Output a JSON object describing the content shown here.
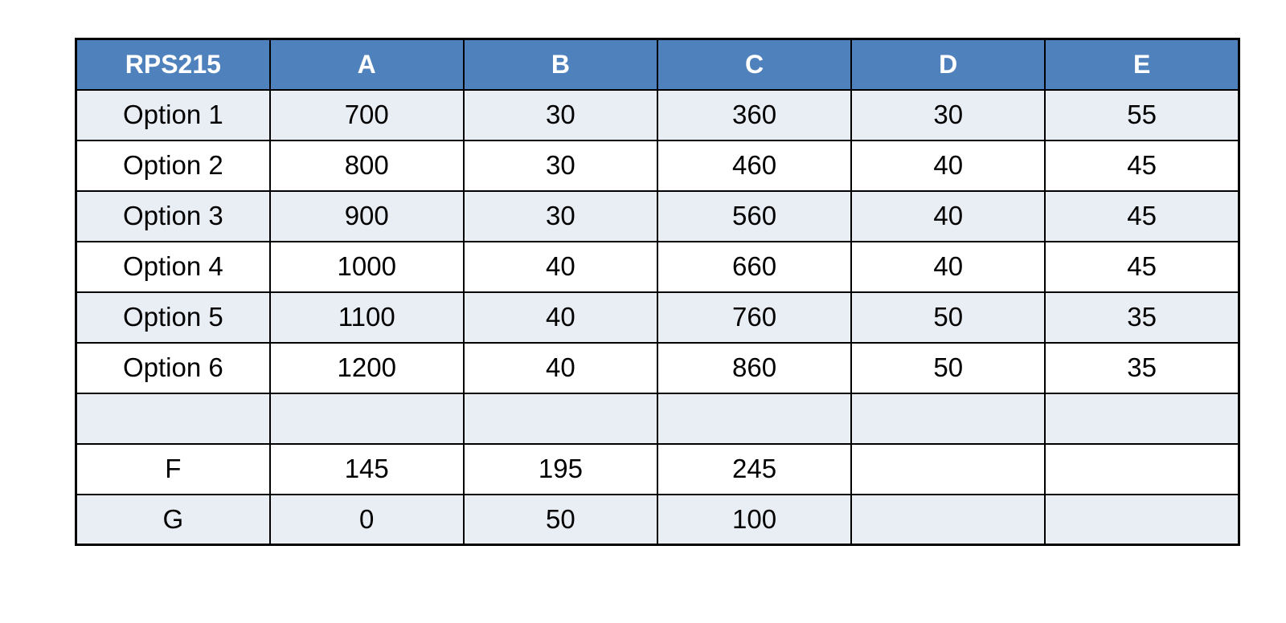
{
  "colors": {
    "header_bg": "#4f81bd",
    "header_text": "#ffffff",
    "band_light": "#e9edf4",
    "band_white": "#ffffff",
    "border": "#000000"
  },
  "table": {
    "headers": [
      "RPS215",
      "A",
      "B",
      "C",
      "D",
      "E"
    ],
    "rows": [
      [
        "Option 1",
        "700",
        "30",
        "360",
        "30",
        "55"
      ],
      [
        "Option 2",
        "800",
        "30",
        "460",
        "40",
        "45"
      ],
      [
        "Option 3",
        "900",
        "30",
        "560",
        "40",
        "45"
      ],
      [
        "Option 4",
        "1000",
        "40",
        "660",
        "40",
        "45"
      ],
      [
        "Option 5",
        "1100",
        "40",
        "760",
        "50",
        "35"
      ],
      [
        "Option 6",
        "1200",
        "40",
        "860",
        "50",
        "35"
      ],
      [
        "",
        "",
        "",
        "",
        "",
        ""
      ],
      [
        "F",
        "145",
        "195",
        "245",
        "",
        ""
      ],
      [
        "G",
        "0",
        "50",
        "100",
        "",
        ""
      ]
    ]
  }
}
